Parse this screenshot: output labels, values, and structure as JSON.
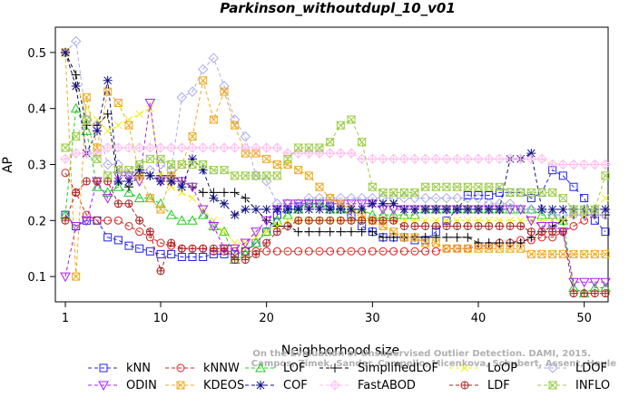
{
  "chart_data": {
    "type": "line",
    "title": "Parkinson_withoutdupl_10_v01",
    "xlabel": "Neighborhood size",
    "ylabel": "AP",
    "xlim": [
      1,
      52
    ],
    "ylim": [
      0.05,
      0.55
    ],
    "x": [
      1,
      2,
      3,
      4,
      5,
      6,
      7,
      8,
      9,
      10,
      11,
      12,
      13,
      14,
      15,
      16,
      17,
      18,
      19,
      20,
      21,
      22,
      23,
      24,
      25,
      26,
      27,
      28,
      29,
      30,
      31,
      32,
      33,
      34,
      35,
      36,
      37,
      38,
      39,
      40,
      41,
      42,
      43,
      44,
      45,
      46,
      47,
      48,
      49,
      50,
      51,
      52
    ],
    "xticks": [
      1,
      10,
      20,
      30,
      40,
      50
    ],
    "yticks": [
      0.1,
      0.2,
      0.3,
      0.4,
      0.5
    ],
    "credit": [
      "Campos, Zimek, Sander, Campello, Micenkova, Schubert, Assent, Houle",
      "On the Evaluation of Unsupervised Outlier Detection. DAMI, 2015."
    ],
    "legend_position": "bottom",
    "series": [
      {
        "name": "kNN",
        "color": "#2020ee",
        "marker": "square",
        "values": [
          0.21,
          0.19,
          0.2,
          0.2,
          0.17,
          0.165,
          0.155,
          0.15,
          0.145,
          0.14,
          0.14,
          0.135,
          0.135,
          0.135,
          0.14,
          0.14,
          0.14,
          0.145,
          0.16,
          0.18,
          0.21,
          0.22,
          0.225,
          0.23,
          0.23,
          0.225,
          0.22,
          0.21,
          0.19,
          0.18,
          0.17,
          0.17,
          0.17,
          0.165,
          0.165,
          0.18,
          0.2,
          0.22,
          0.245,
          0.245,
          0.245,
          0.25,
          0.25,
          0.25,
          0.24,
          0.25,
          0.29,
          0.28,
          0.26,
          0.24,
          0.2,
          0.18
        ]
      },
      {
        "name": "kNNW",
        "color": "#dd2020",
        "marker": "circle",
        "values": [
          0.285,
          0.25,
          0.21,
          0.2,
          0.2,
          0.2,
          0.19,
          0.18,
          0.17,
          0.16,
          0.155,
          0.15,
          0.15,
          0.15,
          0.145,
          0.145,
          0.145,
          0.145,
          0.145,
          0.145,
          0.145,
          0.145,
          0.145,
          0.145,
          0.145,
          0.145,
          0.145,
          0.145,
          0.145,
          0.145,
          0.145,
          0.145,
          0.145,
          0.145,
          0.145,
          0.145,
          0.15,
          0.15,
          0.15,
          0.155,
          0.155,
          0.16,
          0.16,
          0.165,
          0.165,
          0.17,
          0.17,
          0.18,
          0.19,
          0.2,
          0.21,
          0.21
        ]
      },
      {
        "name": "LOF",
        "color": "#20cc20",
        "marker": "triangle-up",
        "values": [
          0.21,
          0.4,
          0.36,
          0.26,
          0.25,
          0.26,
          0.25,
          0.24,
          0.24,
          0.23,
          0.21,
          0.2,
          0.2,
          0.21,
          0.19,
          0.18,
          0.13,
          0.14,
          0.16,
          0.18,
          0.2,
          0.21,
          0.22,
          0.23,
          0.23,
          0.22,
          0.22,
          0.22,
          0.22,
          0.21,
          0.21,
          0.21,
          0.21,
          0.21,
          0.22,
          0.22,
          0.22,
          0.22,
          0.22,
          0.22,
          0.22,
          0.22,
          0.22,
          0.22,
          0.22,
          0.21,
          0.21,
          0.2,
          0.08,
          0.07,
          0.08,
          0.08
        ]
      },
      {
        "name": "SimplifiedLOF",
        "color": "#000000",
        "marker": "plus",
        "values": [
          0.5,
          0.46,
          0.37,
          0.37,
          0.39,
          0.27,
          0.26,
          0.28,
          0.28,
          0.28,
          0.28,
          0.27,
          0.26,
          0.25,
          0.25,
          0.25,
          0.25,
          0.24,
          0.22,
          0.2,
          0.19,
          0.19,
          0.18,
          0.18,
          0.18,
          0.18,
          0.18,
          0.18,
          0.18,
          0.18,
          0.17,
          0.17,
          0.17,
          0.17,
          0.17,
          0.17,
          0.17,
          0.17,
          0.17,
          0.16,
          0.16,
          0.16,
          0.16,
          0.16,
          0.17,
          0.18,
          0.19,
          0.2,
          0.21,
          0.21,
          0.21,
          0.21
        ]
      },
      {
        "name": "LoOP",
        "color": "#eeee20",
        "marker": "cross",
        "values": [
          0.5,
          0.44,
          0.4,
          0.38,
          0.36,
          0.37,
          0.38,
          0.39,
          0.4,
          0.28,
          0.26,
          0.25,
          0.24,
          0.22,
          0.2,
          0.18,
          0.16,
          0.16,
          0.17,
          0.18,
          0.19,
          0.2,
          0.2,
          0.2,
          0.2,
          0.2,
          0.2,
          0.2,
          0.2,
          0.2,
          0.2,
          0.2,
          0.2,
          0.2,
          0.2,
          0.2,
          0.2,
          0.2,
          0.2,
          0.2,
          0.2,
          0.2,
          0.2,
          0.2,
          0.2,
          0.2,
          0.2,
          0.2,
          0.21,
          0.21,
          0.22,
          0.24
        ]
      },
      {
        "name": "LDOF",
        "color": "#aaaaee",
        "marker": "diamond",
        "values": [
          0.5,
          0.52,
          0.38,
          0.37,
          0.3,
          0.3,
          0.28,
          0.29,
          0.29,
          0.3,
          0.29,
          0.42,
          0.43,
          0.47,
          0.49,
          0.44,
          0.38,
          0.35,
          0.28,
          0.27,
          0.23,
          0.23,
          0.23,
          0.24,
          0.24,
          0.24,
          0.24,
          0.24,
          0.24,
          0.24,
          0.24,
          0.24,
          0.24,
          0.24,
          0.24,
          0.24,
          0.24,
          0.24,
          0.24,
          0.24,
          0.23,
          0.23,
          0.23,
          0.22,
          0.22,
          0.22,
          0.21,
          0.21,
          0.21,
          0.21,
          0.21,
          0.21
        ]
      },
      {
        "name": "ODIN",
        "color": "#aa20ee",
        "marker": "triangle-down",
        "values": [
          0.1,
          0.19,
          0.2,
          0.27,
          0.24,
          0.28,
          0.28,
          0.27,
          0.41,
          0.27,
          0.27,
          0.27,
          0.26,
          0.22,
          0.19,
          0.15,
          0.15,
          0.16,
          0.18,
          0.2,
          0.22,
          0.23,
          0.23,
          0.23,
          0.23,
          0.23,
          0.23,
          0.23,
          0.23,
          0.23,
          0.22,
          0.22,
          0.22,
          0.22,
          0.22,
          0.22,
          0.22,
          0.22,
          0.22,
          0.22,
          0.22,
          0.22,
          0.22,
          0.22,
          0.2,
          0.19,
          0.19,
          0.18,
          0.09,
          0.09,
          0.09,
          0.09
        ]
      },
      {
        "name": "KDEOS",
        "color": "#eeaa20",
        "marker": "square-x",
        "values": [
          0.5,
          0.1,
          0.42,
          0.33,
          0.43,
          0.41,
          0.37,
          0.28,
          0.24,
          0.22,
          0.28,
          0.3,
          0.35,
          0.45,
          0.38,
          0.43,
          0.37,
          0.32,
          0.32,
          0.31,
          0.3,
          0.3,
          0.29,
          0.28,
          0.26,
          0.24,
          0.23,
          0.22,
          0.21,
          0.2,
          0.19,
          0.18,
          0.17,
          0.17,
          0.16,
          0.16,
          0.15,
          0.15,
          0.15,
          0.15,
          0.15,
          0.15,
          0.15,
          0.15,
          0.14,
          0.14,
          0.14,
          0.14,
          0.14,
          0.14,
          0.14,
          0.14
        ]
      },
      {
        "name": "COF",
        "color": "#101080",
        "marker": "asterisk",
        "values": [
          0.5,
          0.44,
          0.32,
          0.36,
          0.45,
          0.27,
          0.27,
          0.29,
          0.28,
          0.27,
          0.27,
          0.26,
          0.31,
          0.29,
          0.24,
          0.23,
          0.21,
          0.22,
          0.22,
          0.22,
          0.22,
          0.22,
          0.22,
          0.22,
          0.22,
          0.22,
          0.22,
          0.22,
          0.22,
          0.23,
          0.23,
          0.23,
          0.22,
          0.22,
          0.22,
          0.22,
          0.22,
          0.22,
          0.22,
          0.22,
          0.22,
          0.22,
          0.31,
          0.31,
          0.32,
          0.22,
          0.22,
          0.22,
          0.22,
          0.22,
          0.22,
          0.22
        ]
      },
      {
        "name": "FastABOD",
        "color": "#ffbbee",
        "marker": "diamond-plus",
        "values": [
          0.31,
          0.32,
          0.32,
          0.32,
          0.33,
          0.33,
          0.33,
          0.33,
          0.33,
          0.33,
          0.33,
          0.33,
          0.33,
          0.33,
          0.33,
          0.33,
          0.33,
          0.33,
          0.33,
          0.33,
          0.33,
          0.32,
          0.32,
          0.32,
          0.32,
          0.32,
          0.32,
          0.32,
          0.31,
          0.31,
          0.31,
          0.31,
          0.31,
          0.31,
          0.31,
          0.31,
          0.31,
          0.31,
          0.31,
          0.31,
          0.31,
          0.31,
          0.31,
          0.31,
          0.31,
          0.31,
          0.3,
          0.3,
          0.3,
          0.3,
          0.3,
          0.3
        ]
      },
      {
        "name": "LDF",
        "color": "#aa2222",
        "marker": "circle-plus",
        "values": [
          0.2,
          0.25,
          0.27,
          0.27,
          0.27,
          0.23,
          0.23,
          0.2,
          0.18,
          0.11,
          0.16,
          0.15,
          0.15,
          0.15,
          0.15,
          0.15,
          0.13,
          0.13,
          0.14,
          0.16,
          0.18,
          0.19,
          0.2,
          0.2,
          0.2,
          0.2,
          0.2,
          0.2,
          0.2,
          0.2,
          0.2,
          0.2,
          0.19,
          0.19,
          0.19,
          0.19,
          0.19,
          0.19,
          0.19,
          0.19,
          0.19,
          0.19,
          0.19,
          0.19,
          0.18,
          0.18,
          0.18,
          0.18,
          0.07,
          0.07,
          0.07,
          0.07
        ]
      },
      {
        "name": "INFLO",
        "color": "#99cc44",
        "marker": "hourglass",
        "values": [
          0.33,
          0.35,
          0.38,
          0.31,
          0.28,
          0.29,
          0.29,
          0.3,
          0.31,
          0.31,
          0.3,
          0.3,
          0.3,
          0.3,
          0.29,
          0.29,
          0.28,
          0.28,
          0.28,
          0.28,
          0.28,
          0.31,
          0.33,
          0.33,
          0.33,
          0.34,
          0.37,
          0.38,
          0.34,
          0.26,
          0.25,
          0.25,
          0.25,
          0.25,
          0.26,
          0.26,
          0.26,
          0.26,
          0.26,
          0.26,
          0.26,
          0.26,
          0.25,
          0.25,
          0.25,
          0.25,
          0.25,
          0.24,
          0.22,
          0.22,
          0.22,
          0.28
        ]
      }
    ]
  }
}
